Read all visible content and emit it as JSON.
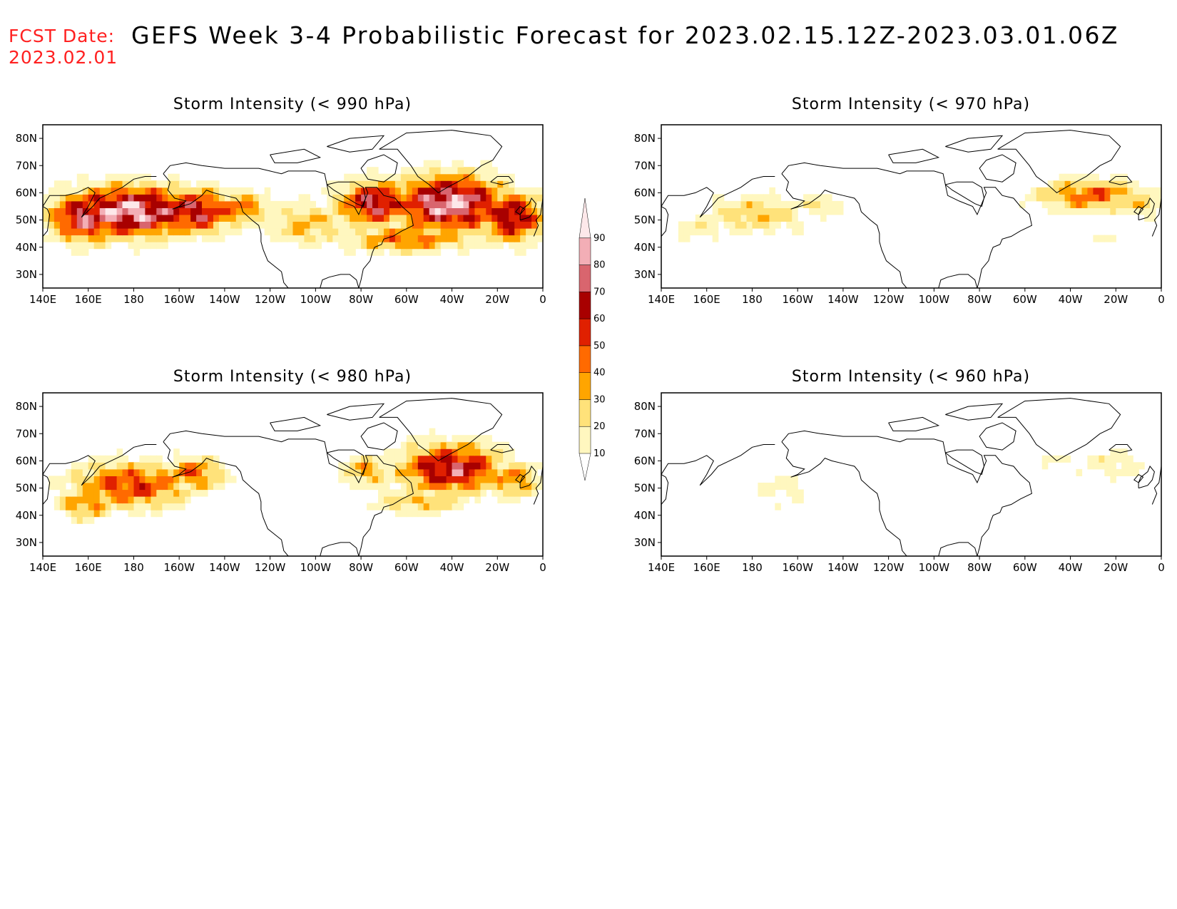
{
  "header": {
    "fcst_label": "FCST Date:",
    "fcst_date": "2023.02.01",
    "title": "GEFS Week 3-4 Probabilistic Forecast for 2023.02.15.12Z-2023.03.01.06Z"
  },
  "map_axes": {
    "lon_ticks": [
      "140E",
      "160E",
      "180",
      "160W",
      "140W",
      "120W",
      "100W",
      "80W",
      "60W",
      "40W",
      "20W",
      "0"
    ],
    "lat_ticks": [
      "80N",
      "70N",
      "60N",
      "50N",
      "40N",
      "30N"
    ],
    "lon_range": [
      140,
      360
    ],
    "lat_range": [
      25,
      85
    ]
  },
  "colorbar": {
    "levels": [
      "10",
      "20",
      "30",
      "40",
      "50",
      "60",
      "70",
      "80",
      "90"
    ],
    "colors": [
      "#ffffff",
      "#fff7bf",
      "#ffe27a",
      "#ffa500",
      "#ff6a00",
      "#e02000",
      "#a80000",
      "#d9656e",
      "#f3aeb6",
      "#fde8ea"
    ]
  },
  "panels": [
    {
      "title": "Storm Intensity (< 990 hPa)",
      "blobs": [
        {
          "lon": 178,
          "lat": 52,
          "rlon": 30,
          "rlat": 9,
          "amp": 88
        },
        {
          "lon": 158,
          "lat": 50,
          "rlon": 16,
          "rlat": 9,
          "amp": 75
        },
        {
          "lon": 205,
          "lat": 52,
          "rlon": 18,
          "rlat": 8,
          "amp": 70
        },
        {
          "lon": 225,
          "lat": 53,
          "rlon": 14,
          "rlat": 6,
          "amp": 45
        },
        {
          "lon": 255,
          "lat": 47,
          "rlon": 18,
          "rlat": 8,
          "amp": 32
        },
        {
          "lon": 285,
          "lat": 55,
          "rlon": 16,
          "rlat": 8,
          "amp": 72
        },
        {
          "lon": 318,
          "lat": 55,
          "rlon": 24,
          "rlat": 10,
          "amp": 88
        },
        {
          "lon": 345,
          "lat": 50,
          "rlon": 14,
          "rlat": 9,
          "amp": 70
        },
        {
          "lon": 300,
          "lat": 42,
          "rlon": 28,
          "rlat": 5,
          "amp": 45
        }
      ]
    },
    {
      "title": "Storm Intensity (< 970 hPa)",
      "blobs": [
        {
          "lon": 180,
          "lat": 51,
          "rlon": 22,
          "rlat": 7,
          "amp": 30
        },
        {
          "lon": 155,
          "lat": 46,
          "rlon": 12,
          "rlat": 6,
          "amp": 18
        },
        {
          "lon": 208,
          "lat": 54,
          "rlon": 10,
          "rlat": 4,
          "amp": 22
        },
        {
          "lon": 328,
          "lat": 58,
          "rlon": 24,
          "rlat": 6,
          "amp": 45
        },
        {
          "lon": 350,
          "lat": 55,
          "rlon": 10,
          "rlat": 5,
          "amp": 28
        },
        {
          "lon": 330,
          "lat": 42,
          "rlon": 12,
          "rlat": 2,
          "amp": 15
        }
      ]
    },
    {
      "title": "Storm Intensity (< 980 hPa)",
      "blobs": [
        {
          "lon": 178,
          "lat": 50,
          "rlon": 26,
          "rlat": 8,
          "amp": 55
        },
        {
          "lon": 158,
          "lat": 43,
          "rlon": 12,
          "rlat": 6,
          "amp": 42
        },
        {
          "lon": 205,
          "lat": 54,
          "rlon": 14,
          "rlat": 6,
          "amp": 45
        },
        {
          "lon": 282,
          "lat": 55,
          "rlon": 12,
          "rlat": 6,
          "amp": 35
        },
        {
          "lon": 318,
          "lat": 56,
          "rlon": 22,
          "rlat": 9,
          "amp": 72
        },
        {
          "lon": 345,
          "lat": 52,
          "rlon": 12,
          "rlat": 7,
          "amp": 40
        },
        {
          "lon": 305,
          "lat": 44,
          "rlon": 22,
          "rlat": 5,
          "amp": 30
        }
      ]
    },
    {
      "title": "Storm Intensity (< 960 hPa)",
      "blobs": [
        {
          "lon": 192,
          "lat": 49,
          "rlon": 14,
          "rlat": 7,
          "amp": 16
        },
        {
          "lon": 337,
          "lat": 58,
          "rlon": 16,
          "rlat": 6,
          "amp": 17
        },
        {
          "lon": 312,
          "lat": 59,
          "rlon": 8,
          "rlat": 3,
          "amp": 14
        }
      ]
    }
  ]
}
